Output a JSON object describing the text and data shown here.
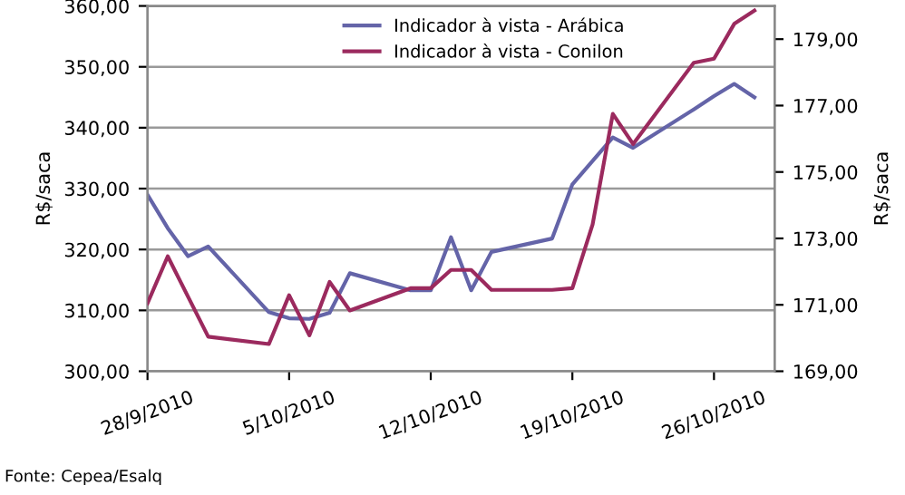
{
  "chart_data": {
    "type": "line",
    "series": [
      {
        "name": "Indicador à vista - Arábica",
        "color": "#6464a8",
        "x": [
          "2010-09-28",
          "2010-09-29",
          "2010-09-30",
          "2010-10-01",
          "2010-10-04",
          "2010-10-05",
          "2010-10-06",
          "2010-10-07",
          "2010-10-08",
          "2010-10-11",
          "2010-10-12",
          "2010-10-13",
          "2010-10-14",
          "2010-10-15",
          "2010-10-18",
          "2010-10-19",
          "2010-10-21",
          "2010-10-22",
          "2010-10-25",
          "2010-10-26",
          "2010-10-27",
          "2010-10-28"
        ],
        "values": [
          329.0,
          323.5,
          318.9,
          320.5,
          309.7,
          308.7,
          308.6,
          309.6,
          316.1,
          313.3,
          313.3,
          322.0,
          313.3,
          319.6,
          321.8,
          330.7,
          338.4,
          336.7,
          343.0,
          345.2,
          347.2,
          345.0
        ]
      },
      {
        "name": "Indicador à vista - Conilon",
        "color": "#9b2a5e",
        "axis": "y2",
        "x": [
          "2010-09-28",
          "2010-09-29",
          "2010-09-30",
          "2010-10-01",
          "2010-10-04",
          "2010-10-05",
          "2010-10-06",
          "2010-10-07",
          "2010-10-08",
          "2010-10-11",
          "2010-10-12",
          "2010-10-13",
          "2010-10-14",
          "2010-10-15",
          "2010-10-18",
          "2010-10-19",
          "2010-10-20",
          "2010-10-21",
          "2010-10-22",
          "2010-10-25",
          "2010-10-26",
          "2010-10-27",
          "2010-10-28"
        ],
        "values": [
          171.05,
          172.46,
          171.25,
          170.04,
          169.82,
          171.29,
          170.08,
          171.69,
          170.83,
          171.5,
          171.5,
          172.05,
          172.05,
          171.45,
          171.45,
          171.5,
          173.42,
          176.75,
          175.84,
          178.29,
          178.41,
          179.46,
          179.86
        ]
      }
    ],
    "xlim": [
      "2010-09-28",
      "2010-10-29"
    ],
    "xticks": [
      {
        "value": "2010-09-28",
        "label": "28/9/2010"
      },
      {
        "value": "2010-10-05",
        "label": "5/10/2010"
      },
      {
        "value": "2010-10-12",
        "label": "12/10/2010"
      },
      {
        "value": "2010-10-19",
        "label": "19/10/2010"
      },
      {
        "value": "2010-10-26",
        "label": "26/10/2010"
      }
    ],
    "ylim": [
      300,
      360
    ],
    "yticks": [
      {
        "value": 300,
        "label": "300,00"
      },
      {
        "value": 310,
        "label": "310,00"
      },
      {
        "value": 320,
        "label": "320,00"
      },
      {
        "value": 330,
        "label": "330,00"
      },
      {
        "value": 340,
        "label": "340,00"
      },
      {
        "value": 350,
        "label": "350,00"
      },
      {
        "value": 360,
        "label": "360,00"
      }
    ],
    "y2lim": [
      169,
      180
    ],
    "y2ticks": [
      {
        "value": 169,
        "label": "169,00"
      },
      {
        "value": 171,
        "label": "171,00"
      },
      {
        "value": 173,
        "label": "173,00"
      },
      {
        "value": 175,
        "label": "175,00"
      },
      {
        "value": 177,
        "label": "177,00"
      },
      {
        "value": 179,
        "label": "179,00"
      }
    ],
    "ylabel": "R$/saca",
    "y2label": "R$/saca",
    "grid": "y",
    "legend": "top right",
    "annotations": [
      "Fonte: Cepea/Esalq"
    ]
  }
}
